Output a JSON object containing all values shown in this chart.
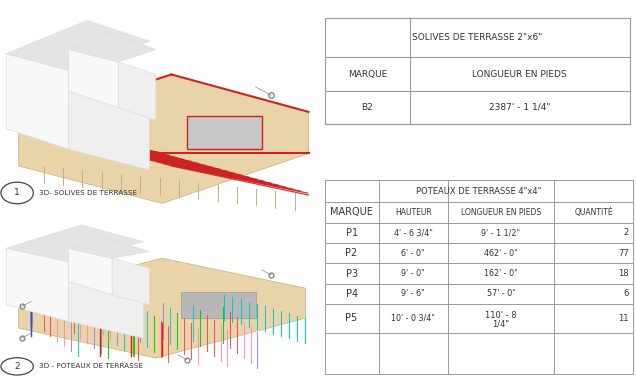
{
  "bg_color": "#ffffff",
  "label1_num": "1",
  "label1_text": "3D- SOLIVES DE TERRASSE",
  "label2_num": "2",
  "label2_text": "3D - POTEAUX DE TERRASSE",
  "table1_title": "SOLIVES DE TERRASSE 2\"x6\"",
  "table1_headers": [
    "MARQUE",
    "LONGUEUR EN PIEDS"
  ],
  "table1_data": [
    [
      "B2",
      "2387' - 1 1/4\""
    ]
  ],
  "table2_title": "POTEAUX DE TERRASSE 4\"x4\"",
  "table2_headers": [
    "MARQUE",
    "HAUTEUR",
    "LONGUEUR EN PIEDS",
    "QUANTITÉ"
  ],
  "table2_data": [
    [
      "P1",
      "4' - 6 3/4\"",
      "9' - 1 1/2\"",
      "2"
    ],
    [
      "P2",
      "6' - 0\"",
      "462' - 0\"",
      "77"
    ],
    [
      "P3",
      "9' - 0\"",
      "162' - 0\"",
      "18"
    ],
    [
      "P4",
      "9' - 6\"",
      "57' - 0\"",
      "6"
    ],
    [
      "P5",
      "10' - 0 3/4\"",
      "110' - 8\n1/4\"",
      "11"
    ]
  ],
  "border_color": "#999999",
  "text_color": "#333333",
  "img1_bg": "#f5f5f5",
  "img2_bg": "#f5f5f5"
}
